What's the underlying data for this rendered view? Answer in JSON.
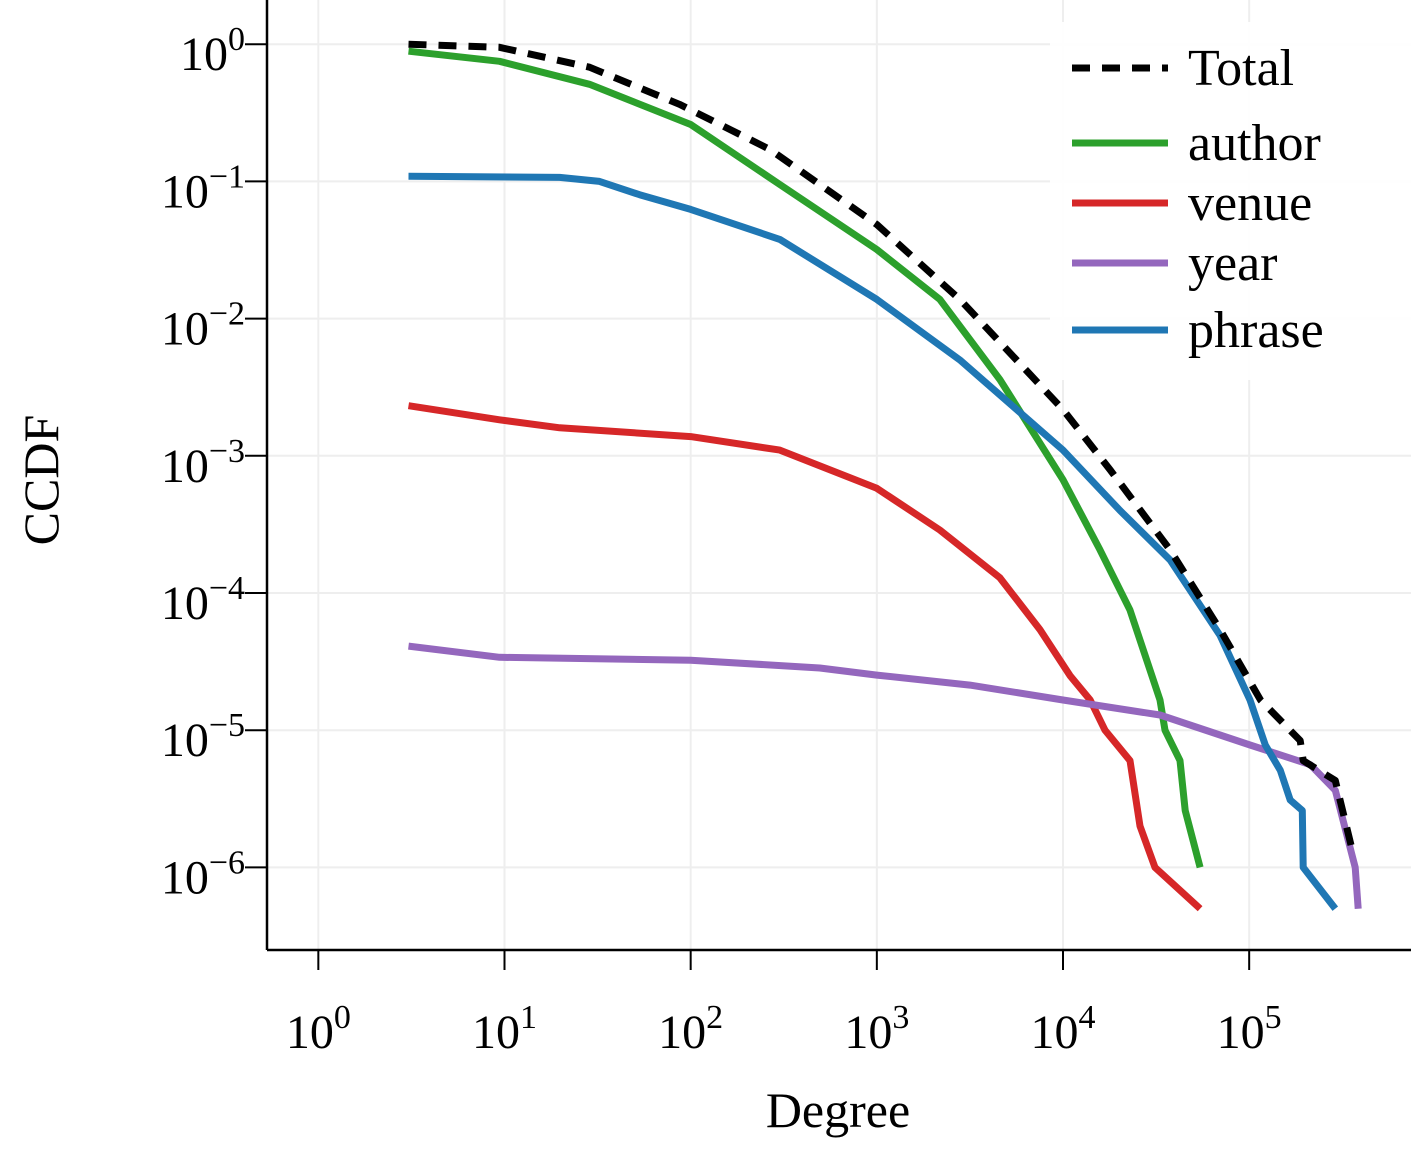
{
  "chart_data": {
    "type": "line",
    "title": "",
    "xlabel": "Degree",
    "ylabel": "CCDF",
    "xscale": "log",
    "yscale": "log",
    "xlim": [
      0.53,
      740000
    ],
    "ylim": [
      2.5e-07,
      2.1
    ],
    "grid": true,
    "legend_placement": "top-right",
    "x_ticks": [
      {
        "value": 1,
        "base": "10",
        "exp": "0"
      },
      {
        "value": 10,
        "base": "10",
        "exp": "1"
      },
      {
        "value": 100,
        "base": "10",
        "exp": "2"
      },
      {
        "value": 1000,
        "base": "10",
        "exp": "3"
      },
      {
        "value": 10000,
        "base": "10",
        "exp": "4"
      },
      {
        "value": 100000,
        "base": "10",
        "exp": "5"
      }
    ],
    "y_ticks": [
      {
        "value": 1,
        "base": "10",
        "exp": "0"
      },
      {
        "value": 0.1,
        "base": "10",
        "exp": "−1"
      },
      {
        "value": 0.01,
        "base": "10",
        "exp": "−2"
      },
      {
        "value": 0.001,
        "base": "10",
        "exp": "−3"
      },
      {
        "value": 0.0001,
        "base": "10",
        "exp": "−4"
      },
      {
        "value": 1e-05,
        "base": "10",
        "exp": "−5"
      },
      {
        "value": 1e-06,
        "base": "10",
        "exp": "−6"
      }
    ],
    "series": [
      {
        "name": "Total",
        "color": "#000000",
        "dashed": true,
        "x": [
          3.05,
          9.4,
          28.6,
          87,
          266,
          1000,
          2790,
          10000,
          17900,
          37600,
          69800,
          115000,
          188000,
          195000,
          290000,
          358000
        ],
        "y": [
          1.0,
          0.95,
          0.68,
          0.365,
          0.171,
          0.0485,
          0.0138,
          0.00217,
          0.00079,
          0.000206,
          5.4e-05,
          1.66e-05,
          8.4e-06,
          6e-06,
          4.3e-06,
          1.33e-06
        ]
      },
      {
        "name": "author",
        "color": "#2ca02c",
        "dashed": false,
        "x": [
          3.05,
          9.4,
          28.6,
          100,
          301,
          1000,
          2180,
          4580,
          10000,
          15800,
          22900,
          33200,
          35300,
          42500,
          45300,
          54500
        ],
        "y": [
          0.89,
          0.75,
          0.51,
          0.26,
          0.095,
          0.0319,
          0.0138,
          0.00359,
          0.00067,
          0.000206,
          7.5e-05,
          1.66e-05,
          1e-05,
          6e-06,
          2.6e-06,
          1e-06
        ]
      },
      {
        "name": "venue",
        "color": "#d62728",
        "dashed": false,
        "x": [
          3.05,
          9.4,
          19.8,
          100,
          301,
          1000,
          2180,
          4580,
          7520,
          10900,
          14000,
          16800,
          22900,
          25900,
          31200,
          54500
        ],
        "y": [
          0.00232,
          0.00183,
          0.0016,
          0.00138,
          0.0011,
          0.00058,
          0.000288,
          0.000129,
          5.4e-05,
          2.5e-05,
          1.66e-05,
          1e-05,
          6e-06,
          2e-06,
          1e-06,
          5e-07
        ]
      },
      {
        "name": "year",
        "color": "#9467bd",
        "dashed": false,
        "x": [
          3.05,
          9.4,
          100,
          494,
          1000,
          3160,
          10000,
          33200,
          101000,
          213000,
          290000,
          371000,
          385000
        ],
        "y": [
          4.1e-05,
          3.4e-05,
          3.24e-05,
          2.84e-05,
          2.52e-05,
          2.13e-05,
          1.66e-05,
          1.29e-05,
          7.8e-06,
          5.6e-06,
          3.65e-06,
          1e-06,
          5e-07
        ]
      },
      {
        "name": "phrase",
        "color": "#1f77b4",
        "dashed": false,
        "x": [
          3.05,
          19.8,
          32.4,
          53.2,
          100,
          301,
          1000,
          2790,
          10000,
          20200,
          37600,
          69800,
          101000,
          122000,
          147000,
          166000,
          193000,
          195000,
          290000
        ],
        "y": [
          0.109,
          0.107,
          0.1,
          0.08,
          0.0625,
          0.0378,
          0.0138,
          0.005,
          0.0011,
          0.0004,
          0.000174,
          4.9e-05,
          1.66e-05,
          7.8e-06,
          5.1e-06,
          3.1e-06,
          2.6e-06,
          1e-06,
          5e-07
        ]
      }
    ]
  }
}
